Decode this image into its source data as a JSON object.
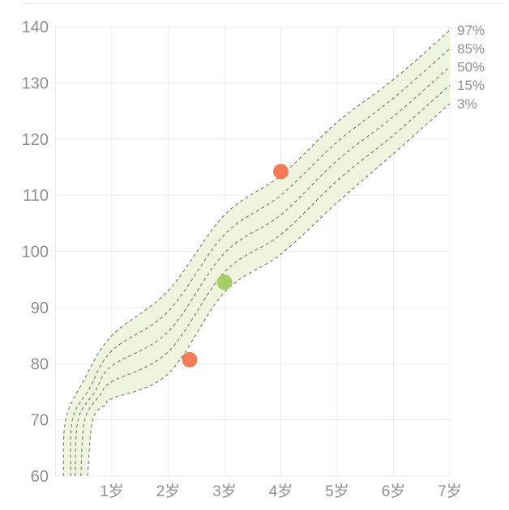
{
  "panel": {
    "background": "#ffffff",
    "divider_color": "#e6e6e6"
  },
  "chart_data": {
    "type": "line",
    "title": "",
    "xlabel": "",
    "ylabel": "",
    "x_unit_suffix": "岁",
    "xlim": [
      0,
      7.04
    ],
    "ylim": [
      60,
      140
    ],
    "grid": true,
    "legend_position": "right-edge",
    "y_tick_labels": [
      "140",
      "130",
      "120",
      "110",
      "100",
      "90",
      "80",
      "70",
      "60"
    ],
    "y_tick_values": [
      140,
      130,
      120,
      110,
      100,
      90,
      80,
      70,
      60
    ],
    "x_tick_labels": [
      "1岁",
      "2岁",
      "3岁",
      "4岁",
      "5岁",
      "6岁",
      "7岁"
    ],
    "x_tick_values": [
      1,
      2,
      3,
      4,
      5,
      6,
      7
    ],
    "band": {
      "fill": "#eef4dd",
      "upper_series": "97%",
      "lower_series": "3%"
    },
    "curve_style": {
      "stroke": "#7a7a6e",
      "dash": "4 3.5",
      "width": 1.1
    },
    "series": [
      {
        "name": "97%",
        "points": [
          [
            0.14,
            60
          ],
          [
            0.18,
            70
          ],
          [
            0.5,
            77
          ],
          [
            1,
            85
          ],
          [
            2,
            93
          ],
          [
            3,
            106.5
          ],
          [
            4,
            113.5
          ],
          [
            5,
            123
          ],
          [
            6,
            130.6
          ],
          [
            7,
            139.4
          ]
        ]
      },
      {
        "name": "85%",
        "points": [
          [
            0.27,
            60
          ],
          [
            0.3,
            70
          ],
          [
            0.6,
            75.5
          ],
          [
            1,
            82.3
          ],
          [
            2,
            89.3
          ],
          [
            3,
            103
          ],
          [
            4,
            110
          ],
          [
            5,
            119.5
          ],
          [
            6,
            127.3
          ],
          [
            7,
            136.1
          ]
        ]
      },
      {
        "name": "50%",
        "points": [
          [
            0.35,
            60
          ],
          [
            0.4,
            70
          ],
          [
            0.7,
            75
          ],
          [
            1,
            79.6
          ],
          [
            2,
            85.7
          ],
          [
            3,
            99.7
          ],
          [
            4,
            106.5
          ],
          [
            5,
            116.2
          ],
          [
            6,
            124
          ],
          [
            7,
            132.9
          ]
        ]
      },
      {
        "name": "15%",
        "points": [
          [
            0.45,
            60
          ],
          [
            0.52,
            70
          ],
          [
            0.8,
            74.5
          ],
          [
            1,
            76.8
          ],
          [
            2,
            82.1
          ],
          [
            3,
            96.3
          ],
          [
            4,
            103
          ],
          [
            5,
            112.6
          ],
          [
            6,
            120.7
          ],
          [
            7,
            129.6
          ]
        ]
      },
      {
        "name": "3%",
        "points": [
          [
            0.57,
            60
          ],
          [
            0.66,
            70
          ],
          [
            0.9,
            72.8
          ],
          [
            1,
            73.8
          ],
          [
            2,
            78.2
          ],
          [
            3,
            92.7
          ],
          [
            4,
            99.5
          ],
          [
            5,
            108.7
          ],
          [
            6,
            117.4
          ],
          [
            7,
            126.3
          ]
        ]
      }
    ],
    "percentile_labels": [
      "97%",
      "85%",
      "50%",
      "15%",
      "3%"
    ],
    "measurements": [
      {
        "age": 4,
        "value": 114.2,
        "color": "#f57b54",
        "status": "above-band"
      },
      {
        "age": 3,
        "value": 94.5,
        "color": "#a6ce67",
        "status": "in-band"
      },
      {
        "age": 2.38,
        "value": 80.7,
        "color": "#f57b54",
        "status": "below-band"
      }
    ],
    "colors": {
      "grid": "#ececec",
      "axis_text": "#8f8f8f",
      "percentile_text": "#909090",
      "point_out_of_range": "#f57b54",
      "point_in_range": "#a6ce67"
    }
  }
}
